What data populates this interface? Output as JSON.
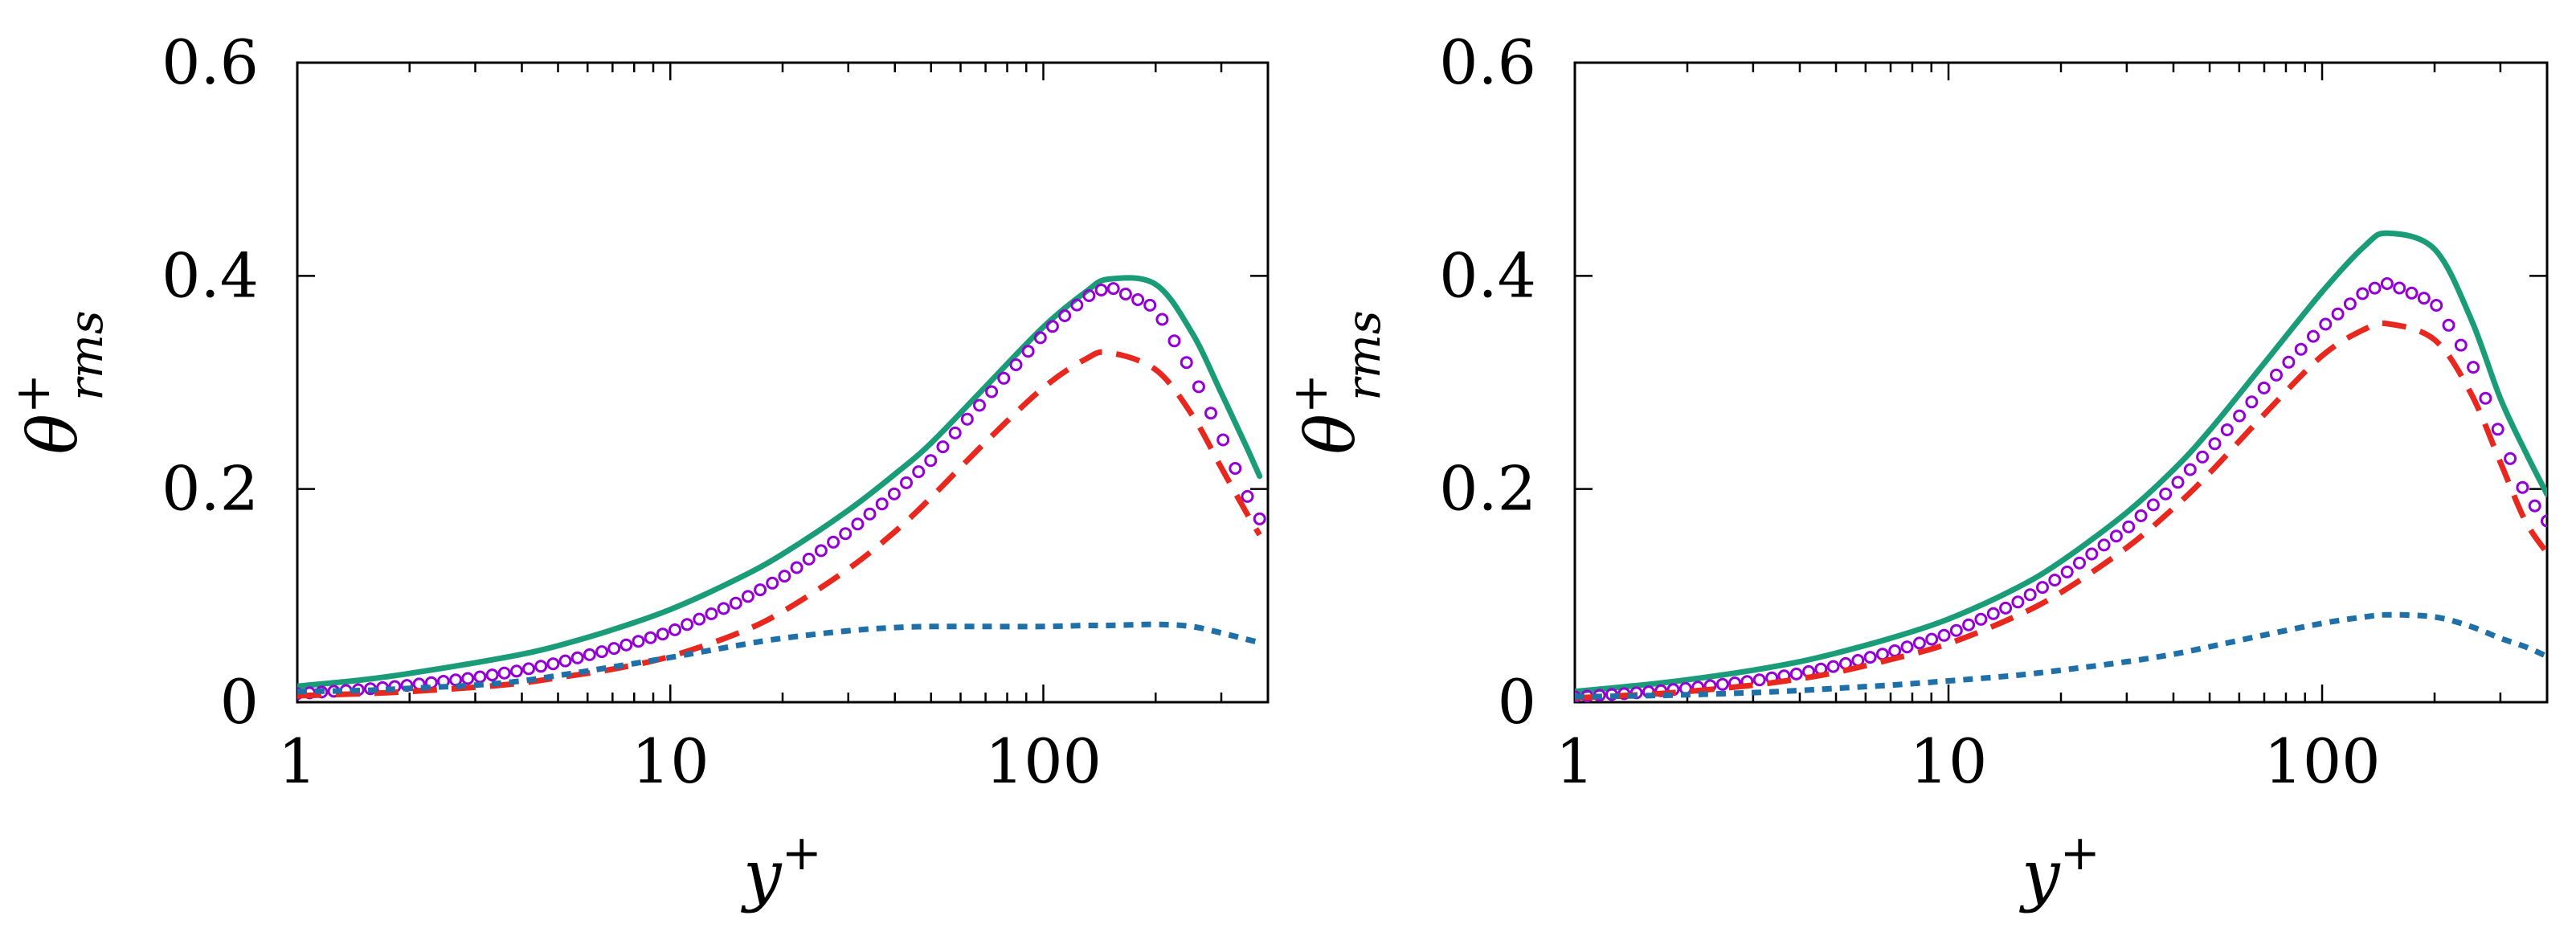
{
  "figure": {
    "background": "#ffffff",
    "colors": {
      "solid": "#1a9c78",
      "circles": "#9400d3",
      "dashed": "#e8281e",
      "dotted": "#1f6fa8"
    }
  },
  "chart_data": [
    {
      "type": "line",
      "panel": "left",
      "xscale": "log",
      "xlim": [
        1,
        400
      ],
      "ylim": [
        0,
        0.6
      ],
      "xticks": [
        1,
        10,
        100
      ],
      "xtick_labels": [
        "1",
        "10",
        "100"
      ],
      "yticks": [
        0,
        0.2,
        0.4,
        0.6
      ],
      "ytick_labels": [
        "0",
        "0.2",
        "0.4",
        "0.6"
      ],
      "xlabel": {
        "base": "y",
        "sup": "+"
      },
      "ylabel": {
        "base": "θ",
        "sup": "+",
        "sub": "rms"
      },
      "x": [
        1,
        1.5,
        2,
        3,
        4,
        5,
        7,
        10,
        15,
        20,
        30,
        40,
        50,
        70,
        100,
        130,
        150,
        200,
        250,
        300,
        350,
        380
      ],
      "series": [
        {
          "name": "solid",
          "style": "solid",
          "values": [
            0.015,
            0.021,
            0.027,
            0.037,
            0.045,
            0.053,
            0.068,
            0.087,
            0.115,
            0.139,
            0.18,
            0.214,
            0.243,
            0.296,
            0.352,
            0.385,
            0.397,
            0.392,
            0.347,
            0.29,
            0.24,
            0.212
          ]
        },
        {
          "name": "circles",
          "style": "markers",
          "values": [
            0.008,
            0.012,
            0.016,
            0.023,
            0.03,
            0.037,
            0.05,
            0.066,
            0.093,
            0.117,
            0.16,
            0.196,
            0.227,
            0.285,
            0.345,
            0.38,
            0.39,
            0.37,
            0.31,
            0.25,
            0.195,
            0.172
          ]
        },
        {
          "name": "dashed",
          "style": "dashed",
          "values": [
            0.006,
            0.008,
            0.01,
            0.014,
            0.018,
            0.023,
            0.031,
            0.043,
            0.064,
            0.085,
            0.125,
            0.16,
            0.192,
            0.244,
            0.295,
            0.322,
            0.328,
            0.312,
            0.27,
            0.22,
            0.178,
            0.157
          ]
        },
        {
          "name": "dotted",
          "style": "dotted",
          "values": [
            0.01,
            0.011,
            0.013,
            0.016,
            0.02,
            0.025,
            0.033,
            0.042,
            0.053,
            0.06,
            0.067,
            0.07,
            0.071,
            0.071,
            0.071,
            0.072,
            0.072,
            0.073,
            0.071,
            0.065,
            0.059,
            0.056
          ]
        }
      ]
    },
    {
      "type": "line",
      "panel": "right",
      "xscale": "log",
      "xlim": [
        1,
        400
      ],
      "ylim": [
        0,
        0.6
      ],
      "xticks": [
        1,
        10,
        100
      ],
      "xtick_labels": [
        "1",
        "10",
        "100"
      ],
      "yticks": [
        0,
        0.2,
        0.4,
        0.6
      ],
      "ytick_labels": [
        "0",
        "0.2",
        "0.4",
        "0.6"
      ],
      "xlabel": {
        "base": "y",
        "sup": "+"
      },
      "ylabel": {
        "base": "θ",
        "sup": "+",
        "sub": "rms"
      },
      "x": [
        1,
        1.5,
        2,
        3,
        4,
        5,
        7,
        10,
        15,
        20,
        30,
        40,
        50,
        70,
        100,
        130,
        150,
        200,
        250,
        300,
        350,
        400
      ],
      "series": [
        {
          "name": "solid",
          "style": "solid",
          "values": [
            0.01,
            0.016,
            0.021,
            0.03,
            0.038,
            0.046,
            0.06,
            0.078,
            0.106,
            0.132,
            0.178,
            0.218,
            0.255,
            0.318,
            0.385,
            0.428,
            0.44,
            0.425,
            0.36,
            0.285,
            0.235,
            0.195
          ]
        },
        {
          "name": "circles",
          "style": "markers",
          "values": [
            0.005,
            0.009,
            0.013,
            0.02,
            0.027,
            0.034,
            0.047,
            0.064,
            0.092,
            0.118,
            0.163,
            0.202,
            0.237,
            0.295,
            0.352,
            0.385,
            0.393,
            0.375,
            0.32,
            0.25,
            0.195,
            0.17
          ]
        },
        {
          "name": "dashed",
          "style": "dashed",
          "values": [
            0.004,
            0.007,
            0.01,
            0.016,
            0.022,
            0.028,
            0.04,
            0.055,
            0.08,
            0.103,
            0.145,
            0.182,
            0.215,
            0.27,
            0.325,
            0.35,
            0.355,
            0.34,
            0.29,
            0.225,
            0.17,
            0.14
          ]
        },
        {
          "name": "dotted",
          "style": "dotted",
          "values": [
            0.005,
            0.006,
            0.007,
            0.009,
            0.011,
            0.013,
            0.016,
            0.02,
            0.025,
            0.03,
            0.038,
            0.045,
            0.052,
            0.063,
            0.074,
            0.08,
            0.082,
            0.08,
            0.071,
            0.06,
            0.052,
            0.043
          ]
        }
      ]
    }
  ]
}
